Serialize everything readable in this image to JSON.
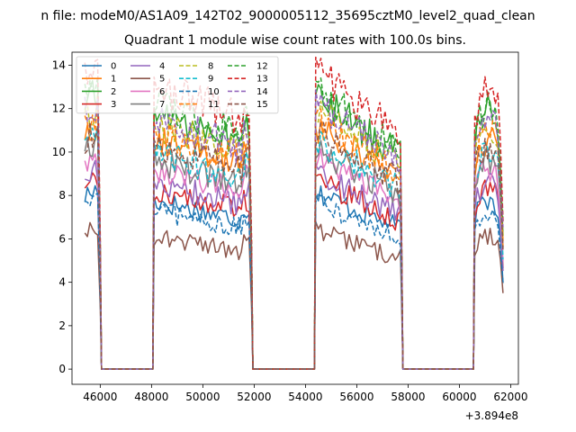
{
  "chart_data": {
    "type": "line",
    "suptitle": "n file: modeM0/AS1A09_142T02_9000005112_35695cztM0_level2_quad_clean",
    "title": "Quadrant 1 module wise count rates with 100.0s bins.",
    "xlabel": "",
    "ylabel": "",
    "x_offset_label": "+3.894e8",
    "xlim": [
      44900,
      62300
    ],
    "ylim": [
      -0.7,
      14.6
    ],
    "x_ticks": [
      46000,
      48000,
      50000,
      52000,
      54000,
      56000,
      58000,
      60000,
      62000
    ],
    "y_ticks": [
      0,
      2,
      4,
      6,
      8,
      10,
      12,
      14
    ],
    "x_tick_labels": [
      "46000",
      "48000",
      "50000",
      "52000",
      "54000",
      "56000",
      "58000",
      "60000",
      "62000"
    ],
    "y_tick_labels": [
      "0",
      "2",
      "4",
      "6",
      "8",
      "10",
      "12",
      "14"
    ],
    "grid": false,
    "legend_position": "top-left",
    "legend_columns": 4,
    "segments": [
      {
        "start": 45400,
        "end": 45950
      },
      {
        "start": 48100,
        "end": 51850
      },
      {
        "start": 54400,
        "end": 57700
      },
      {
        "start": 60600,
        "end": 61700
      }
    ],
    "gap_x": [
      46050,
      48050,
      51950,
      54350,
      57800,
      60550
    ],
    "series": [
      {
        "name": "0",
        "color": "#1f77b4",
        "dash": false,
        "level": 6.6
      },
      {
        "name": "1",
        "color": "#ff7f0e",
        "dash": false,
        "level": 9.0
      },
      {
        "name": "2",
        "color": "#2ca02c",
        "dash": false,
        "level": 10.1
      },
      {
        "name": "3",
        "color": "#d62728",
        "dash": false,
        "level": 7.0
      },
      {
        "name": "4",
        "color": "#9467bd",
        "dash": false,
        "level": 7.3
      },
      {
        "name": "5",
        "color": "#8c564b",
        "dash": false,
        "level": 5.2
      },
      {
        "name": "6",
        "color": "#e377c2",
        "dash": false,
        "level": 7.9
      },
      {
        "name": "7",
        "color": "#7f7f7f",
        "dash": false,
        "level": 8.2
      },
      {
        "name": "8",
        "color": "#bcbd22",
        "dash": true,
        "level": 9.6
      },
      {
        "name": "9",
        "color": "#17becf",
        "dash": true,
        "level": 8.5
      },
      {
        "name": "10",
        "color": "#1f77b4",
        "dash": true,
        "level": 6.2
      },
      {
        "name": "11",
        "color": "#ff7f0e",
        "dash": true,
        "level": 9.3
      },
      {
        "name": "12",
        "color": "#2ca02c",
        "dash": true,
        "level": 10.4
      },
      {
        "name": "13",
        "color": "#d62728",
        "dash": true,
        "level": 11.1
      },
      {
        "name": "14",
        "color": "#9467bd",
        "dash": true,
        "level": 9.8
      },
      {
        "name": "15",
        "color": "#8c564b",
        "dash": true,
        "level": 8.8
      }
    ]
  }
}
